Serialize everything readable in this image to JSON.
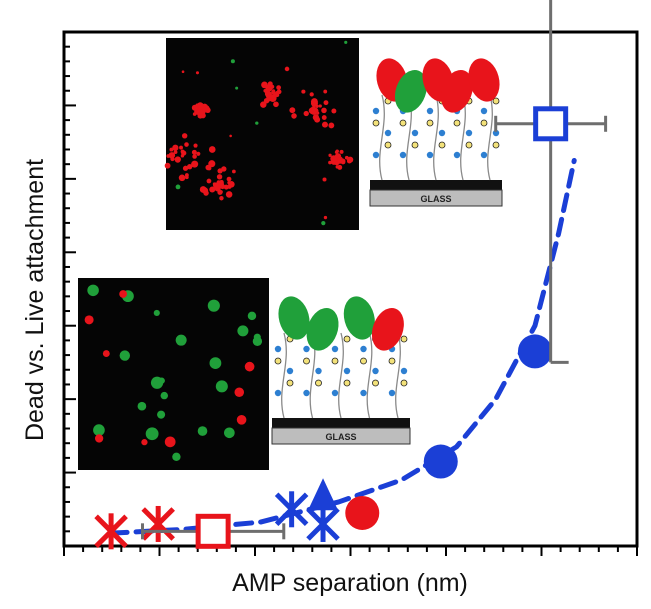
{
  "chart_data": {
    "type": "scatter",
    "title": "",
    "xlabel": "AMP separation (nm)",
    "ylabel": "Dead vs. Live  attachment",
    "x_tick_labels_shown": false,
    "y_tick_labels_shown": false,
    "grid": false,
    "series": [
      {
        "marker": "asterisk",
        "color": "#e8141b",
        "points": [
          {
            "x": 0.6,
            "y": 0.4
          },
          {
            "x": 1.2,
            "y": 0.6
          }
        ]
      },
      {
        "marker": "open-square",
        "color": "#e8141b",
        "points": [
          {
            "x": 1.9,
            "y": 0.4,
            "x_err": 0.9
          }
        ]
      },
      {
        "marker": "asterisk",
        "color": "#1b3fd6",
        "points": [
          {
            "x": 2.9,
            "y": 1.0
          },
          {
            "x": 3.3,
            "y": 0.6
          }
        ]
      },
      {
        "marker": "filled-triangle",
        "color": "#1b3fd6",
        "points": [
          {
            "x": 3.3,
            "y": 1.3
          }
        ]
      },
      {
        "marker": "filled-circle",
        "color": "#e8141b",
        "points": [
          {
            "x": 3.8,
            "y": 0.9
          }
        ]
      },
      {
        "marker": "filled-circle",
        "color": "#1b3fd6",
        "points": [
          {
            "x": 4.8,
            "y": 2.3
          },
          {
            "x": 6.0,
            "y": 5.3
          }
        ]
      },
      {
        "marker": "open-square",
        "color": "#1b3fd6",
        "points": [
          {
            "x": 6.2,
            "y": 11.5,
            "x_err": 0.7,
            "y_err_plus": 4.0,
            "y_err_minus": 6.5
          }
        ]
      }
    ],
    "trend_line": {
      "style": "dashed",
      "color": "#1b3fd6",
      "points": [
        {
          "x": 0.6,
          "y": 0.35
        },
        {
          "x": 1.5,
          "y": 0.45
        },
        {
          "x": 2.5,
          "y": 0.65
        },
        {
          "x": 3.5,
          "y": 1.2
        },
        {
          "x": 4.3,
          "y": 1.8
        },
        {
          "x": 5.0,
          "y": 2.7
        },
        {
          "x": 5.5,
          "y": 4.0
        },
        {
          "x": 6.0,
          "y": 6.0
        },
        {
          "x": 6.3,
          "y": 8.5
        },
        {
          "x": 6.5,
          "y": 10.5
        }
      ]
    },
    "xlim": [
      0,
      7.3
    ],
    "ylim": [
      0,
      14
    ]
  },
  "insets": {
    "top": {
      "glass_label": "GLASS"
    },
    "bottom": {
      "glass_label": "GLASS"
    }
  },
  "colors": {
    "red": "#e8141b",
    "blue": "#1b3fd6",
    "green": "#20a03a",
    "gray": "#6e6e6e"
  }
}
